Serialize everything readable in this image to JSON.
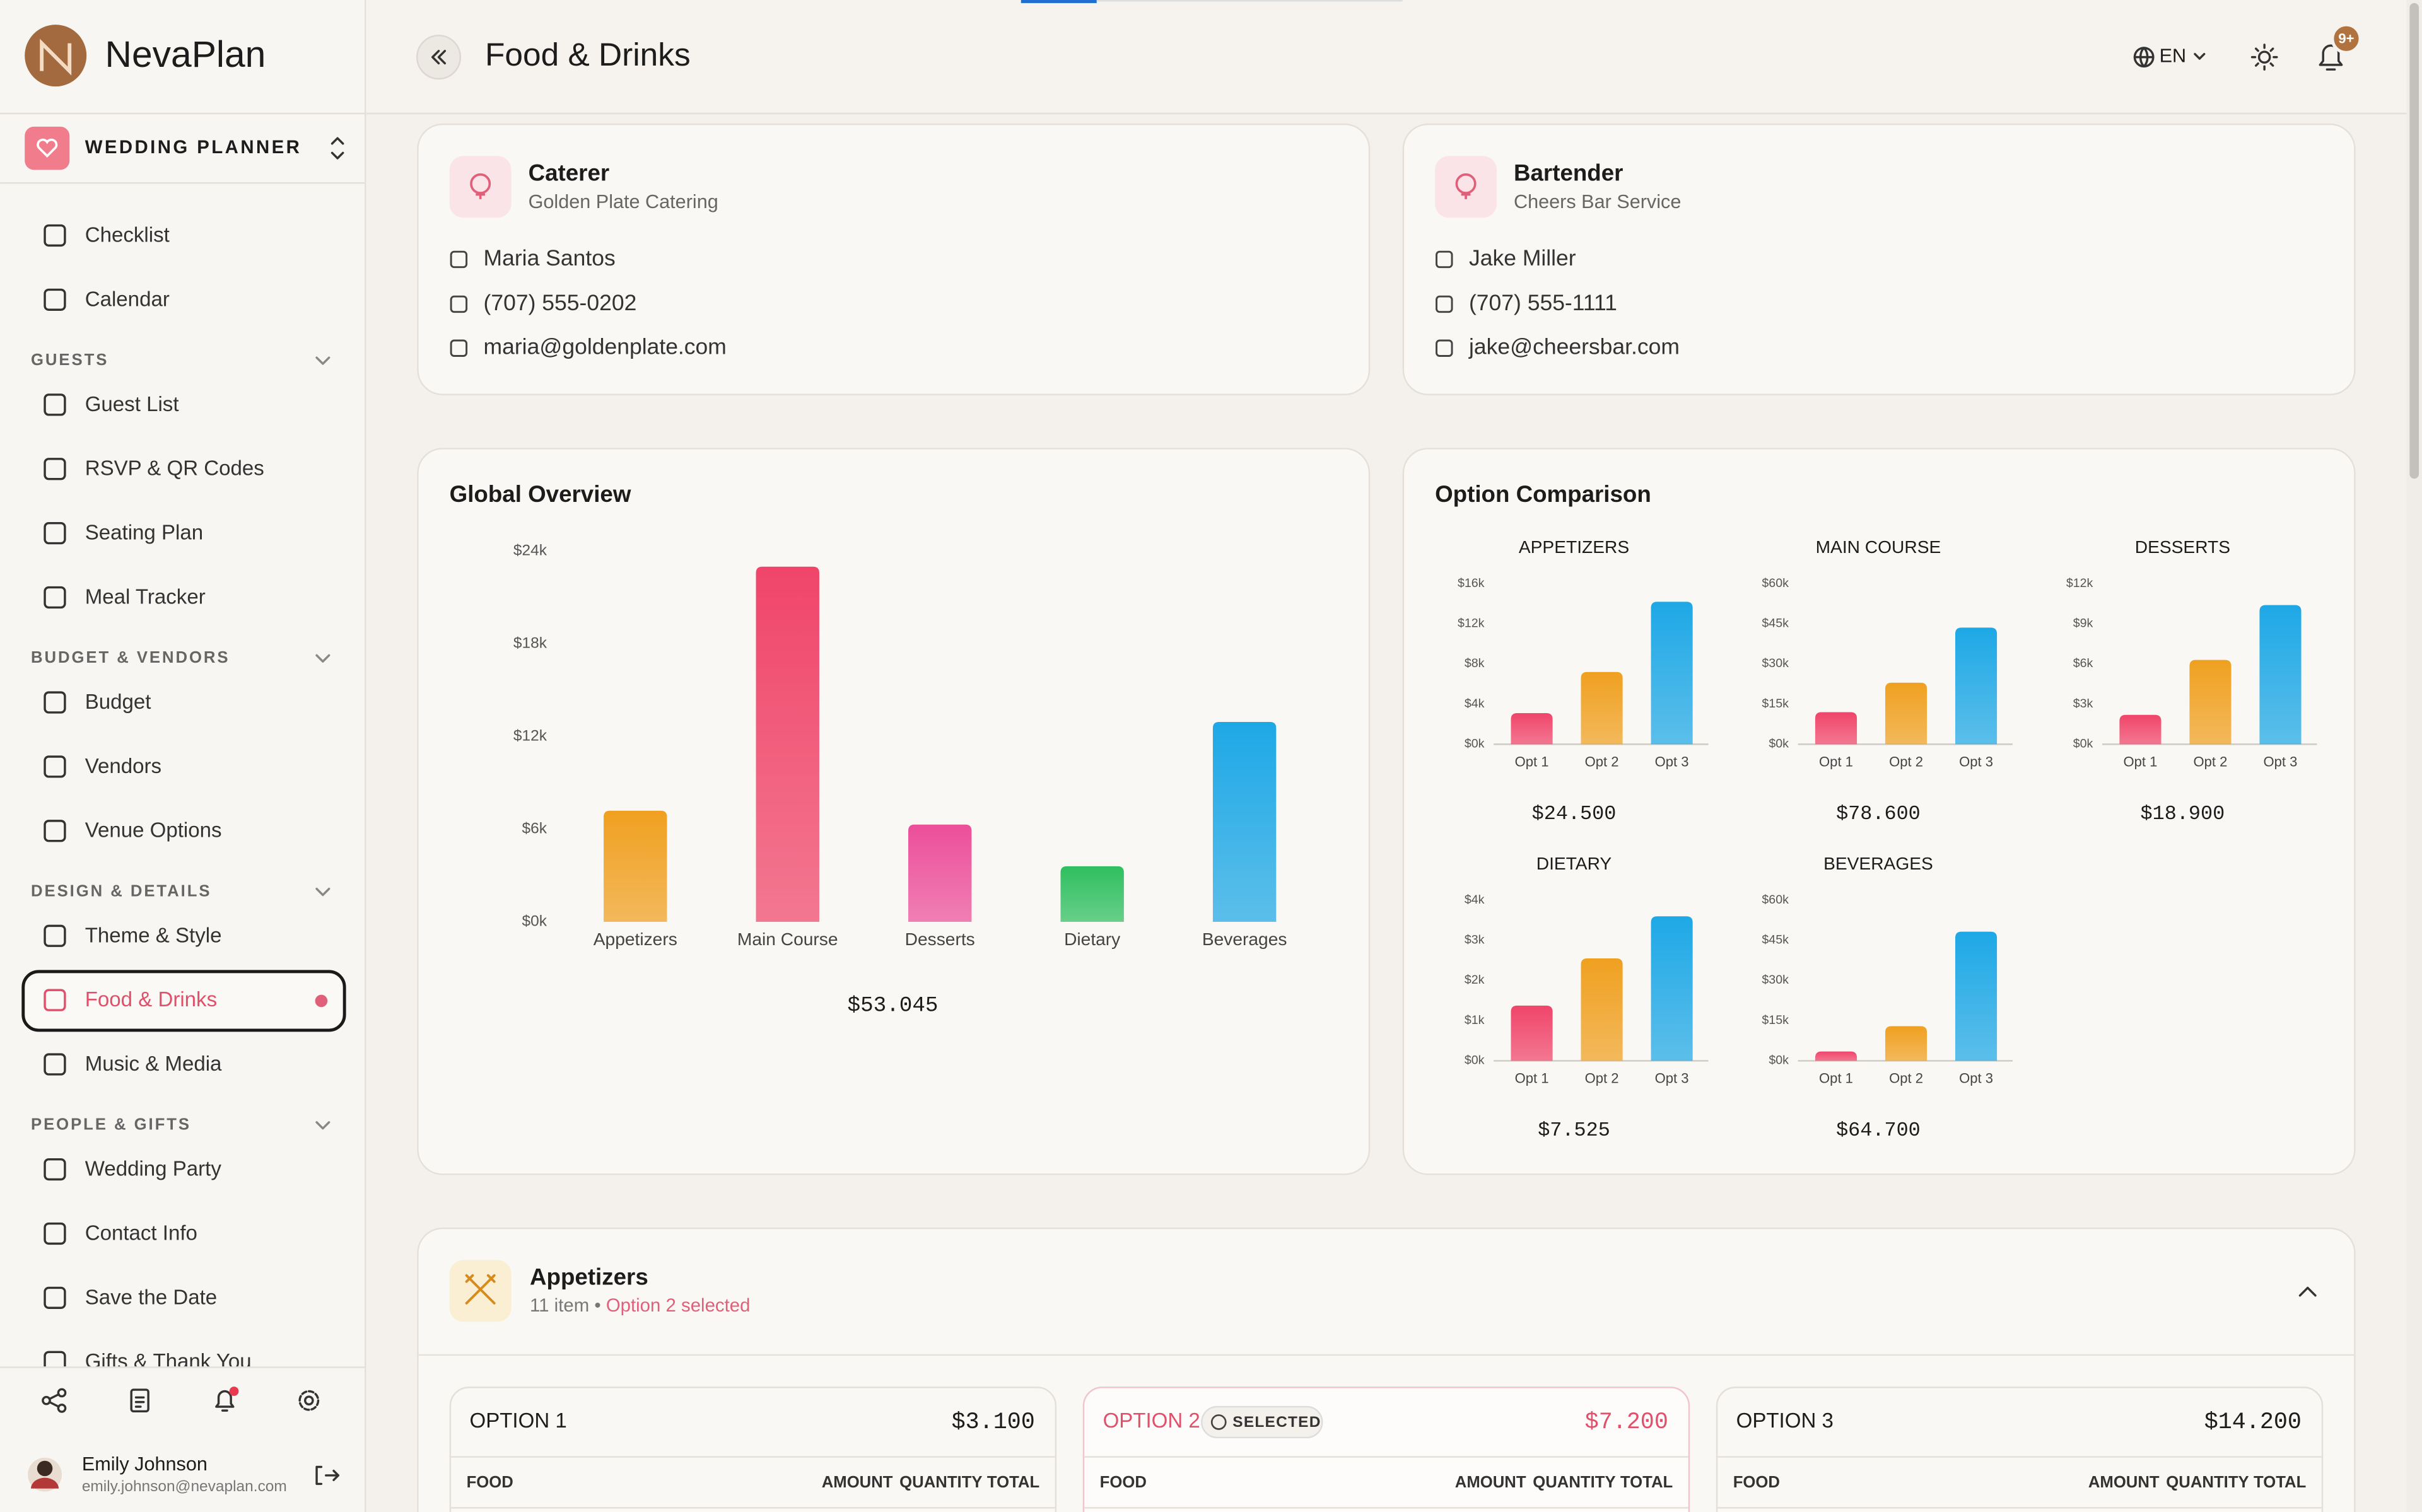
{
  "brand": "NevaPlan",
  "workspace": "WEDDING PLANNER",
  "nav": [
    {
      "items": [
        {
          "label": "Checklist"
        },
        {
          "label": "Calendar"
        }
      ]
    },
    {
      "label": "GUESTS",
      "items": [
        {
          "label": "Guest List"
        },
        {
          "label": "RSVP & QR Codes"
        },
        {
          "label": "Seating Plan"
        },
        {
          "label": "Meal Tracker"
        }
      ]
    },
    {
      "label": "BUDGET & VENDORS",
      "items": [
        {
          "label": "Budget"
        },
        {
          "label": "Vendors"
        },
        {
          "label": "Venue Options"
        }
      ]
    },
    {
      "label": "DESIGN & DETAILS",
      "items": [
        {
          "label": "Theme & Style"
        },
        {
          "label": "Food & Drinks",
          "active": true
        },
        {
          "label": "Music & Media"
        }
      ]
    },
    {
      "label": "PEOPLE & GIFTS",
      "items": [
        {
          "label": "Wedding Party"
        },
        {
          "label": "Contact Info"
        },
        {
          "label": "Save the Date"
        },
        {
          "label": "Gifts & Thank You"
        }
      ]
    }
  ],
  "user": {
    "name": "Emily Johnson",
    "email": "emily.johnson@nevaplan.com"
  },
  "header": {
    "title": "Food & Drinks",
    "language": "EN",
    "notifications": "9+"
  },
  "vendors": [
    {
      "role": "Caterer",
      "company": "Golden Plate Catering",
      "contact": "Maria Santos",
      "phone": "(707) 555-0202",
      "email": "maria@goldenplate.com"
    },
    {
      "role": "Bartender",
      "company": "Cheers Bar Service",
      "contact": "Jake Miller",
      "phone": "(707) 555-1111",
      "email": "jake@cheersbar.com"
    }
  ],
  "comparison_title": "Option Comparison",
  "chart_data": [
    {
      "type": "bar",
      "title": "Global Overview",
      "categories": [
        "Appetizers",
        "Main Course",
        "Desserts",
        "Dietary",
        "Beverages"
      ],
      "values": [
        7200,
        23000,
        6300,
        3600,
        12945
      ],
      "colors": [
        "#f0a020",
        "#f0456a",
        "#ec4f9a",
        "#2fbf5f",
        "#1ea8e6"
      ],
      "ylim": [
        0,
        24000
      ],
      "yticks": [
        {
          "value": 0,
          "label": "$0k"
        },
        {
          "value": 6000,
          "label": "$6k"
        },
        {
          "value": 12000,
          "label": "$12k"
        },
        {
          "value": 18000,
          "label": "$18k"
        },
        {
          "value": 24000,
          "label": "$24k"
        }
      ],
      "grid": false,
      "total": "$53.045"
    },
    {
      "type": "bar",
      "title": "APPETIZERS",
      "categories": [
        "Opt 1",
        "Opt 2",
        "Opt 3"
      ],
      "values": [
        3100,
        7200,
        14200
      ],
      "colors": [
        "#f0456a",
        "#f0a020",
        "#1ea8e6"
      ],
      "ylim": [
        0,
        16000
      ],
      "yticks": [
        {
          "value": 0,
          "label": "$0k"
        },
        {
          "value": 4000,
          "label": "$4k"
        },
        {
          "value": 8000,
          "label": "$8k"
        },
        {
          "value": 12000,
          "label": "$12k"
        },
        {
          "value": 16000,
          "label": "$16k"
        }
      ],
      "grid": false,
      "total": "$24.500"
    },
    {
      "type": "bar",
      "title": "MAIN COURSE",
      "categories": [
        "Opt 1",
        "Opt 2",
        "Opt 3"
      ],
      "values": [
        12000,
        23000,
        43600
      ],
      "colors": [
        "#f0456a",
        "#f0a020",
        "#1ea8e6"
      ],
      "ylim": [
        0,
        60000
      ],
      "yticks": [
        {
          "value": 0,
          "label": "$0k"
        },
        {
          "value": 15000,
          "label": "$15k"
        },
        {
          "value": 30000,
          "label": "$30k"
        },
        {
          "value": 45000,
          "label": "$45k"
        },
        {
          "value": 60000,
          "label": "$60k"
        }
      ],
      "grid": false,
      "total": "$78.600"
    },
    {
      "type": "bar",
      "title": "DESSERTS",
      "categories": [
        "Opt 1",
        "Opt 2",
        "Opt 3"
      ],
      "values": [
        2200,
        6300,
        10400
      ],
      "colors": [
        "#f0456a",
        "#f0a020",
        "#1ea8e6"
      ],
      "ylim": [
        0,
        12000
      ],
      "yticks": [
        {
          "value": 0,
          "label": "$0k"
        },
        {
          "value": 3000,
          "label": "$3k"
        },
        {
          "value": 6000,
          "label": "$6k"
        },
        {
          "value": 9000,
          "label": "$9k"
        },
        {
          "value": 12000,
          "label": "$12k"
        }
      ],
      "grid": false,
      "total": "$18.900"
    },
    {
      "type": "bar",
      "title": "DIETARY",
      "categories": [
        "Opt 1",
        "Opt 2",
        "Opt 3"
      ],
      "values": [
        1375,
        2550,
        3600
      ],
      "colors": [
        "#f0456a",
        "#f0a020",
        "#1ea8e6"
      ],
      "ylim": [
        0,
        4000
      ],
      "yticks": [
        {
          "value": 0,
          "label": "$0k"
        },
        {
          "value": 1000,
          "label": "$1k"
        },
        {
          "value": 2000,
          "label": "$2k"
        },
        {
          "value": 3000,
          "label": "$3k"
        },
        {
          "value": 4000,
          "label": "$4k"
        }
      ],
      "grid": false,
      "total": "$7.525"
    },
    {
      "type": "bar",
      "title": "BEVERAGES",
      "categories": [
        "Opt 1",
        "Opt 2",
        "Opt 3"
      ],
      "values": [
        3500,
        12945,
        48255
      ],
      "colors": [
        "#f0456a",
        "#f0a020",
        "#1ea8e6"
      ],
      "ylim": [
        0,
        60000
      ],
      "yticks": [
        {
          "value": 0,
          "label": "$0k"
        },
        {
          "value": 15000,
          "label": "$15k"
        },
        {
          "value": 30000,
          "label": "$30k"
        },
        {
          "value": 45000,
          "label": "$45k"
        },
        {
          "value": 60000,
          "label": "$60k"
        }
      ],
      "grid": false,
      "total": "$64.700"
    }
  ],
  "section": {
    "title": "Appetizers",
    "count": "11 item",
    "separator": "•",
    "status": "Option 2 selected",
    "columns": [
      "FOOD",
      "AMOUNT",
      "QUANTITY",
      "TOTAL"
    ],
    "options": [
      {
        "name": "OPTION 1",
        "price": "$3.100"
      },
      {
        "name": "OPTION 2",
        "price": "$7.200",
        "selected": true,
        "badge": "SELECTED"
      },
      {
        "name": "OPTION 3",
        "price": "$14.200"
      }
    ]
  }
}
